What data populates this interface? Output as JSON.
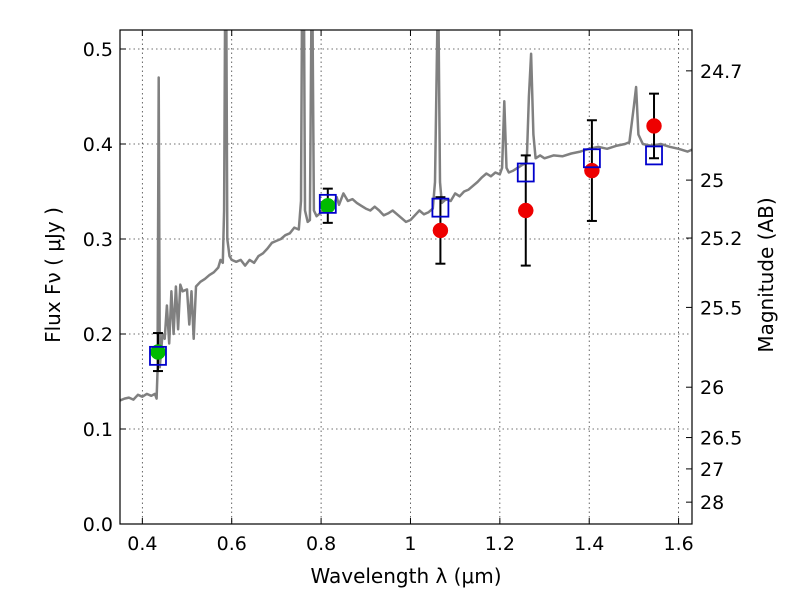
{
  "chart_data": {
    "type": "scatter",
    "xlabel": "Wavelength  λ (μm)",
    "ylabel": "Flux  Fν  ( μJy )",
    "y2label": "Magnitude (AB)",
    "xlim": [
      0.35,
      1.63
    ],
    "ylim": [
      0.0,
      0.52
    ],
    "grid": true,
    "x_ticks": [
      0.4,
      0.6,
      0.8,
      1.0,
      1.2,
      1.4,
      1.6
    ],
    "x_tick_labels": [
      "0.4",
      "0.6",
      "0.8",
      "1",
      "1.2",
      "1.4",
      "1.6"
    ],
    "y_ticks": [
      0.0,
      0.1,
      0.2,
      0.3,
      0.4,
      0.5
    ],
    "y_tick_labels": [
      "0.0",
      "0.1",
      "0.2",
      "0.3",
      "0.4",
      "0.5"
    ],
    "y2_ticks": [
      {
        "label": "24.7",
        "flux": 0.477
      },
      {
        "label": "25",
        "flux": 0.362
      },
      {
        "label": "25.2",
        "flux": 0.301
      },
      {
        "label": "25.5",
        "flux": 0.228
      },
      {
        "label": "26",
        "flux": 0.144
      },
      {
        "label": "26.5",
        "flux": 0.091
      },
      {
        "label": "27",
        "flux": 0.058
      },
      {
        "label": "28",
        "flux": 0.023
      }
    ],
    "colors": {
      "template": "#808080",
      "green_points": "#00bb00",
      "red_points": "#ee0000",
      "model_squares": "#0000cc",
      "errorbars": "#000000"
    },
    "series": [
      {
        "kind": "line",
        "points": [
          [
            0.35,
            0.13
          ],
          [
            0.36,
            0.132
          ],
          [
            0.37,
            0.133
          ],
          [
            0.38,
            0.131
          ],
          [
            0.39,
            0.136
          ],
          [
            0.4,
            0.134
          ],
          [
            0.41,
            0.137
          ],
          [
            0.42,
            0.135
          ],
          [
            0.428,
            0.137
          ],
          [
            0.432,
            0.132
          ],
          [
            0.434,
            0.16
          ],
          [
            0.4365,
            0.47
          ],
          [
            0.439,
            0.165
          ],
          [
            0.445,
            0.2
          ],
          [
            0.45,
            0.195
          ],
          [
            0.455,
            0.23
          ],
          [
            0.46,
            0.19
          ],
          [
            0.465,
            0.245
          ],
          [
            0.47,
            0.2
          ],
          [
            0.475,
            0.25
          ],
          [
            0.48,
            0.205
          ],
          [
            0.485,
            0.252
          ],
          [
            0.49,
            0.245
          ],
          [
            0.5,
            0.247
          ],
          [
            0.505,
            0.21
          ],
          [
            0.51,
            0.245
          ],
          [
            0.515,
            0.195
          ],
          [
            0.52,
            0.25
          ],
          [
            0.53,
            0.255
          ],
          [
            0.54,
            0.258
          ],
          [
            0.55,
            0.262
          ],
          [
            0.56,
            0.265
          ],
          [
            0.57,
            0.27
          ],
          [
            0.575,
            0.278
          ],
          [
            0.58,
            0.275
          ],
          [
            0.583,
            0.33
          ],
          [
            0.585,
            0.52
          ],
          [
            0.588,
            0.52
          ],
          [
            0.59,
            0.3
          ],
          [
            0.595,
            0.282
          ],
          [
            0.6,
            0.278
          ],
          [
            0.61,
            0.276
          ],
          [
            0.62,
            0.278
          ],
          [
            0.63,
            0.272
          ],
          [
            0.64,
            0.278
          ],
          [
            0.65,
            0.275
          ],
          [
            0.66,
            0.282
          ],
          [
            0.67,
            0.285
          ],
          [
            0.68,
            0.29
          ],
          [
            0.69,
            0.296
          ],
          [
            0.7,
            0.298
          ],
          [
            0.71,
            0.3
          ],
          [
            0.72,
            0.304
          ],
          [
            0.73,
            0.306
          ],
          [
            0.74,
            0.312
          ],
          [
            0.75,
            0.31
          ],
          [
            0.755,
            0.34
          ],
          [
            0.757,
            0.52
          ],
          [
            0.762,
            0.52
          ],
          [
            0.764,
            0.33
          ],
          [
            0.77,
            0.318
          ],
          [
            0.775,
            0.32
          ],
          [
            0.778,
            0.52
          ],
          [
            0.781,
            0.52
          ],
          [
            0.784,
            0.33
          ],
          [
            0.79,
            0.324
          ],
          [
            0.8,
            0.328
          ],
          [
            0.81,
            0.33
          ],
          [
            0.82,
            0.334
          ],
          [
            0.83,
            0.338
          ],
          [
            0.835,
            0.344
          ],
          [
            0.84,
            0.336
          ],
          [
            0.85,
            0.348
          ],
          [
            0.86,
            0.34
          ],
          [
            0.87,
            0.342
          ],
          [
            0.88,
            0.338
          ],
          [
            0.89,
            0.335
          ],
          [
            0.9,
            0.332
          ],
          [
            0.91,
            0.33
          ],
          [
            0.92,
            0.334
          ],
          [
            0.93,
            0.33
          ],
          [
            0.94,
            0.325
          ],
          [
            0.95,
            0.327
          ],
          [
            0.96,
            0.33
          ],
          [
            0.97,
            0.326
          ],
          [
            0.98,
            0.322
          ],
          [
            0.99,
            0.318
          ],
          [
            1.0,
            0.32
          ],
          [
            1.01,
            0.325
          ],
          [
            1.02,
            0.33
          ],
          [
            1.03,
            0.326
          ],
          [
            1.04,
            0.328
          ],
          [
            1.05,
            0.332
          ],
          [
            1.055,
            0.36
          ],
          [
            1.06,
            0.52
          ],
          [
            1.063,
            0.52
          ],
          [
            1.066,
            0.36
          ],
          [
            1.07,
            0.338
          ],
          [
            1.08,
            0.342
          ],
          [
            1.09,
            0.34
          ],
          [
            1.1,
            0.348
          ],
          [
            1.11,
            0.345
          ],
          [
            1.12,
            0.35
          ],
          [
            1.13,
            0.352
          ],
          [
            1.14,
            0.356
          ],
          [
            1.15,
            0.36
          ],
          [
            1.16,
            0.365
          ],
          [
            1.17,
            0.369
          ],
          [
            1.18,
            0.366
          ],
          [
            1.19,
            0.37
          ],
          [
            1.2,
            0.368
          ],
          [
            1.205,
            0.375
          ],
          [
            1.21,
            0.445
          ],
          [
            1.215,
            0.375
          ],
          [
            1.22,
            0.37
          ],
          [
            1.23,
            0.372
          ],
          [
            1.24,
            0.375
          ],
          [
            1.25,
            0.378
          ],
          [
            1.26,
            0.38
          ],
          [
            1.265,
            0.45
          ],
          [
            1.27,
            0.495
          ],
          [
            1.275,
            0.41
          ],
          [
            1.28,
            0.385
          ],
          [
            1.29,
            0.388
          ],
          [
            1.3,
            0.385
          ],
          [
            1.32,
            0.388
          ],
          [
            1.34,
            0.387
          ],
          [
            1.36,
            0.39
          ],
          [
            1.38,
            0.392
          ],
          [
            1.4,
            0.395
          ],
          [
            1.42,
            0.397
          ],
          [
            1.44,
            0.395
          ],
          [
            1.46,
            0.398
          ],
          [
            1.48,
            0.4
          ],
          [
            1.49,
            0.402
          ],
          [
            1.5,
            0.44
          ],
          [
            1.505,
            0.46
          ],
          [
            1.51,
            0.41
          ],
          [
            1.52,
            0.4
          ],
          [
            1.54,
            0.398
          ],
          [
            1.56,
            0.4
          ],
          [
            1.58,
            0.397
          ],
          [
            1.6,
            0.395
          ],
          [
            1.62,
            0.392
          ],
          [
            1.63,
            0.394
          ]
        ]
      },
      {
        "kind": "points",
        "marker": "circle",
        "color_key": "green_points",
        "points": [
          {
            "x": 0.435,
            "y": 0.181,
            "err": 0.02
          },
          {
            "x": 0.815,
            "y": 0.335,
            "err": 0.018
          }
        ]
      },
      {
        "kind": "points",
        "marker": "circle",
        "color_key": "red_points",
        "points": [
          {
            "x": 1.067,
            "y": 0.309,
            "err": 0.035
          },
          {
            "x": 1.258,
            "y": 0.33,
            "err": 0.058
          },
          {
            "x": 1.406,
            "y": 0.372,
            "err": 0.053
          },
          {
            "x": 1.545,
            "y": 0.419,
            "err": 0.034
          }
        ]
      },
      {
        "kind": "points",
        "marker": "open-square",
        "color_key": "model_squares",
        "points": [
          {
            "x": 0.435,
            "y": 0.177
          },
          {
            "x": 0.815,
            "y": 0.337
          },
          {
            "x": 1.067,
            "y": 0.333
          },
          {
            "x": 1.258,
            "y": 0.37
          },
          {
            "x": 1.406,
            "y": 0.385
          },
          {
            "x": 1.545,
            "y": 0.388
          }
        ]
      }
    ]
  }
}
